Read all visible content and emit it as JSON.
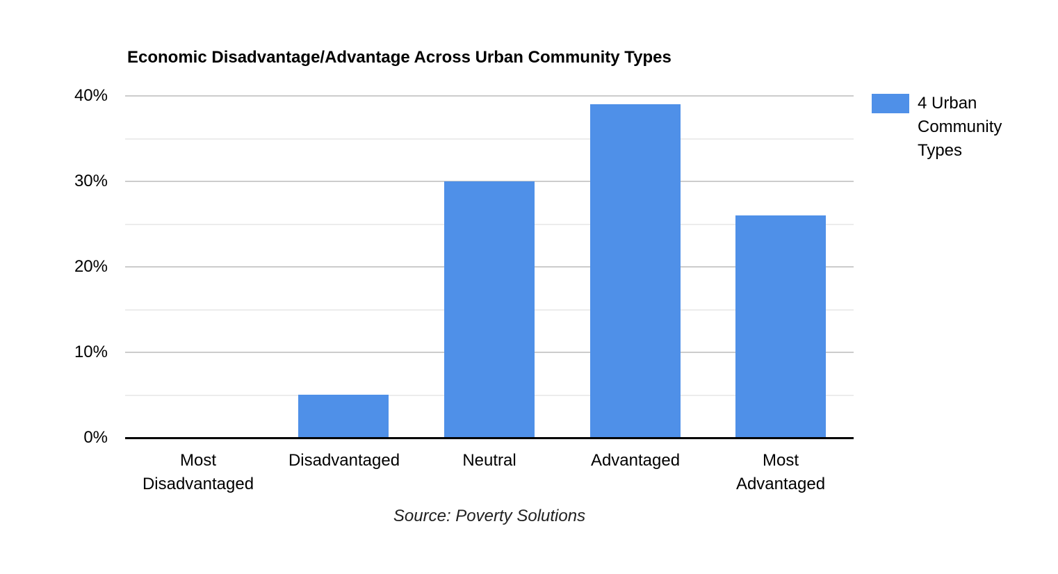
{
  "chart_data": {
    "type": "bar",
    "title": "Economic Disadvantage/Advantage Across Urban Community Types",
    "categories": [
      "Most\nDisadvantaged",
      "Disadvantaged",
      "Neutral",
      "Advantaged",
      "Most\nAdvantaged"
    ],
    "series": [
      {
        "name": "4 Urban Community Types",
        "values": [
          0,
          5,
          30,
          39,
          26
        ]
      }
    ],
    "xlabel": "",
    "ylabel": "",
    "ylim": [
      0,
      40
    ],
    "y_ticks": [
      "0%",
      "10%",
      "20%",
      "30%",
      "40%"
    ],
    "y_tick_values": [
      0,
      10,
      20,
      30,
      40
    ],
    "minor_grid_step": 5,
    "grid": true,
    "legend_position": "right",
    "legend_label": "4 Urban Community Types",
    "source": "Source: Poverty Solutions",
    "colors": {
      "bar": "#4F90E8",
      "major_grid": "#cccccc",
      "minor_grid": "#ececec",
      "axis": "#000000",
      "text": "#000000"
    }
  }
}
